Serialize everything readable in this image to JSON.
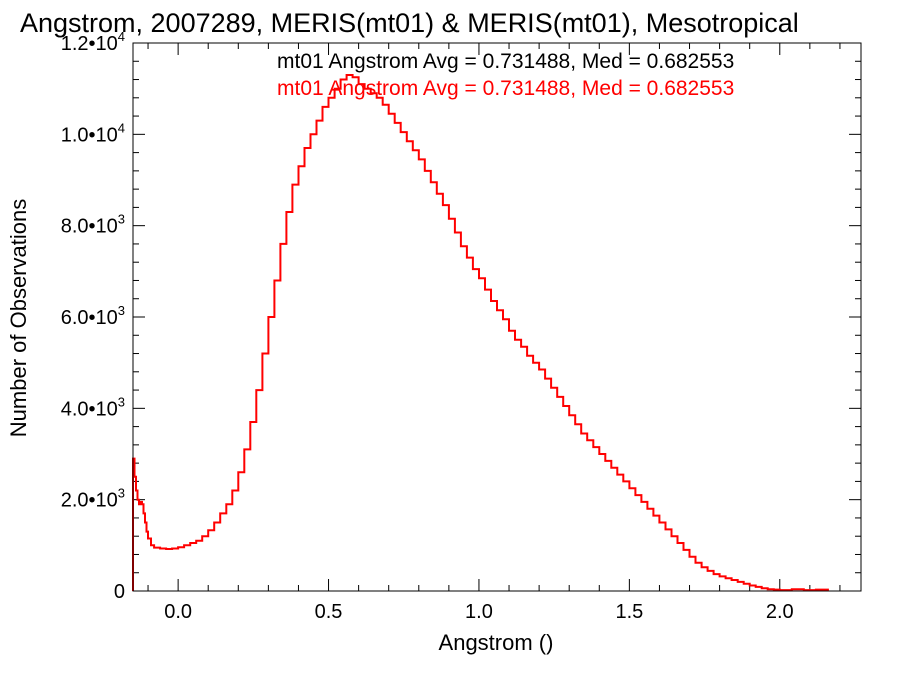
{
  "chart_data": {
    "type": "line",
    "style": "step",
    "title": "Angstrom, 2007289, MERIS(mt01) & MERIS(mt01), Mesotropical",
    "xlabel": "Angstrom ()",
    "ylabel": "Number of Observations",
    "xlim": [
      -0.15,
      2.27
    ],
    "ylim": [
      0,
      12000
    ],
    "x_ticks": [
      {
        "value": 0.0,
        "label": "0.0"
      },
      {
        "value": 0.5,
        "label": "0.5"
      },
      {
        "value": 1.0,
        "label": "1.0"
      },
      {
        "value": 1.5,
        "label": "1.5"
      },
      {
        "value": 2.0,
        "label": "2.0"
      }
    ],
    "y_ticks": [
      {
        "value": 0,
        "mantissa": "0",
        "exponent": ""
      },
      {
        "value": 2000,
        "mantissa": "2.0•10",
        "exponent": "3"
      },
      {
        "value": 4000,
        "mantissa": "4.0•10",
        "exponent": "3"
      },
      {
        "value": 6000,
        "mantissa": "6.0•10",
        "exponent": "3"
      },
      {
        "value": 8000,
        "mantissa": "8.0•10",
        "exponent": "3"
      },
      {
        "value": 10000,
        "mantissa": "1.0•10",
        "exponent": "4"
      },
      {
        "value": 12000,
        "mantissa": "1.2•10",
        "exponent": "4"
      }
    ],
    "x_minor_step": 0.1,
    "y_minor_step": 400,
    "legend": [
      {
        "text": "mt01 Angstrom Avg = 0.731488, Med = 0.682553",
        "color": "#000000"
      },
      {
        "text": "mt01 Angstrom Avg = 0.731488, Med = 0.682553",
        "color": "#ff0000"
      }
    ],
    "legend_position": "top-right",
    "grid": false,
    "series": [
      {
        "color": "#ff0000",
        "points": [
          [
            -0.15,
            2900
          ],
          [
            -0.145,
            2500
          ],
          [
            -0.14,
            2200
          ],
          [
            -0.135,
            2000
          ],
          [
            -0.13,
            1900
          ],
          [
            -0.125,
            1950
          ],
          [
            -0.12,
            1900
          ],
          [
            -0.115,
            1700
          ],
          [
            -0.11,
            1500
          ],
          [
            -0.105,
            1300
          ],
          [
            -0.1,
            1150
          ],
          [
            -0.09,
            1000
          ],
          [
            -0.08,
            950
          ],
          [
            -0.06,
            930
          ],
          [
            -0.04,
            920
          ],
          [
            -0.02,
            930
          ],
          [
            0.0,
            960
          ],
          [
            0.02,
            1000
          ],
          [
            0.04,
            1050
          ],
          [
            0.06,
            1100
          ],
          [
            0.08,
            1200
          ],
          [
            0.1,
            1330
          ],
          [
            0.12,
            1500
          ],
          [
            0.14,
            1700
          ],
          [
            0.16,
            1900
          ],
          [
            0.18,
            2200
          ],
          [
            0.2,
            2600
          ],
          [
            0.22,
            3100
          ],
          [
            0.24,
            3700
          ],
          [
            0.26,
            4400
          ],
          [
            0.28,
            5200
          ],
          [
            0.3,
            6000
          ],
          [
            0.32,
            6800
          ],
          [
            0.34,
            7600
          ],
          [
            0.36,
            8300
          ],
          [
            0.38,
            8900
          ],
          [
            0.4,
            9300
          ],
          [
            0.42,
            9700
          ],
          [
            0.44,
            10000
          ],
          [
            0.46,
            10300
          ],
          [
            0.48,
            10600
          ],
          [
            0.5,
            10800
          ],
          [
            0.52,
            11000
          ],
          [
            0.54,
            11200
          ],
          [
            0.56,
            11300
          ],
          [
            0.58,
            11250
          ],
          [
            0.6,
            11100
          ],
          [
            0.62,
            11000
          ],
          [
            0.64,
            10900
          ],
          [
            0.66,
            10800
          ],
          [
            0.68,
            10650
          ],
          [
            0.7,
            10450
          ],
          [
            0.72,
            10250
          ],
          [
            0.74,
            10050
          ],
          [
            0.76,
            9850
          ],
          [
            0.78,
            9650
          ],
          [
            0.8,
            9450
          ],
          [
            0.82,
            9200
          ],
          [
            0.84,
            8950
          ],
          [
            0.86,
            8700
          ],
          [
            0.88,
            8450
          ],
          [
            0.9,
            8150
          ],
          [
            0.92,
            7850
          ],
          [
            0.94,
            7550
          ],
          [
            0.96,
            7300
          ],
          [
            0.98,
            7050
          ],
          [
            1.0,
            6850
          ],
          [
            1.02,
            6600
          ],
          [
            1.04,
            6350
          ],
          [
            1.06,
            6150
          ],
          [
            1.08,
            5950
          ],
          [
            1.1,
            5700
          ],
          [
            1.12,
            5500
          ],
          [
            1.14,
            5350
          ],
          [
            1.16,
            5150
          ],
          [
            1.18,
            5000
          ],
          [
            1.2,
            4850
          ],
          [
            1.22,
            4650
          ],
          [
            1.24,
            4450
          ],
          [
            1.26,
            4250
          ],
          [
            1.28,
            4050
          ],
          [
            1.3,
            3850
          ],
          [
            1.32,
            3650
          ],
          [
            1.34,
            3450
          ],
          [
            1.36,
            3300
          ],
          [
            1.38,
            3150
          ],
          [
            1.4,
            3000
          ],
          [
            1.42,
            2850
          ],
          [
            1.44,
            2700
          ],
          [
            1.46,
            2550
          ],
          [
            1.48,
            2400
          ],
          [
            1.5,
            2250
          ],
          [
            1.52,
            2100
          ],
          [
            1.54,
            1950
          ],
          [
            1.56,
            1800
          ],
          [
            1.58,
            1650
          ],
          [
            1.6,
            1500
          ],
          [
            1.62,
            1350
          ],
          [
            1.64,
            1200
          ],
          [
            1.66,
            1050
          ],
          [
            1.68,
            900
          ],
          [
            1.7,
            750
          ],
          [
            1.72,
            620
          ],
          [
            1.74,
            520
          ],
          [
            1.76,
            440
          ],
          [
            1.78,
            370
          ],
          [
            1.8,
            320
          ],
          [
            1.82,
            280
          ],
          [
            1.84,
            240
          ],
          [
            1.86,
            200
          ],
          [
            1.88,
            160
          ],
          [
            1.9,
            120
          ],
          [
            1.92,
            90
          ],
          [
            1.94,
            60
          ],
          [
            1.96,
            40
          ],
          [
            1.98,
            30
          ],
          [
            2.0,
            20
          ],
          [
            2.04,
            40
          ],
          [
            2.08,
            20
          ],
          [
            2.12,
            30
          ],
          [
            2.16,
            10
          ]
        ]
      }
    ]
  }
}
